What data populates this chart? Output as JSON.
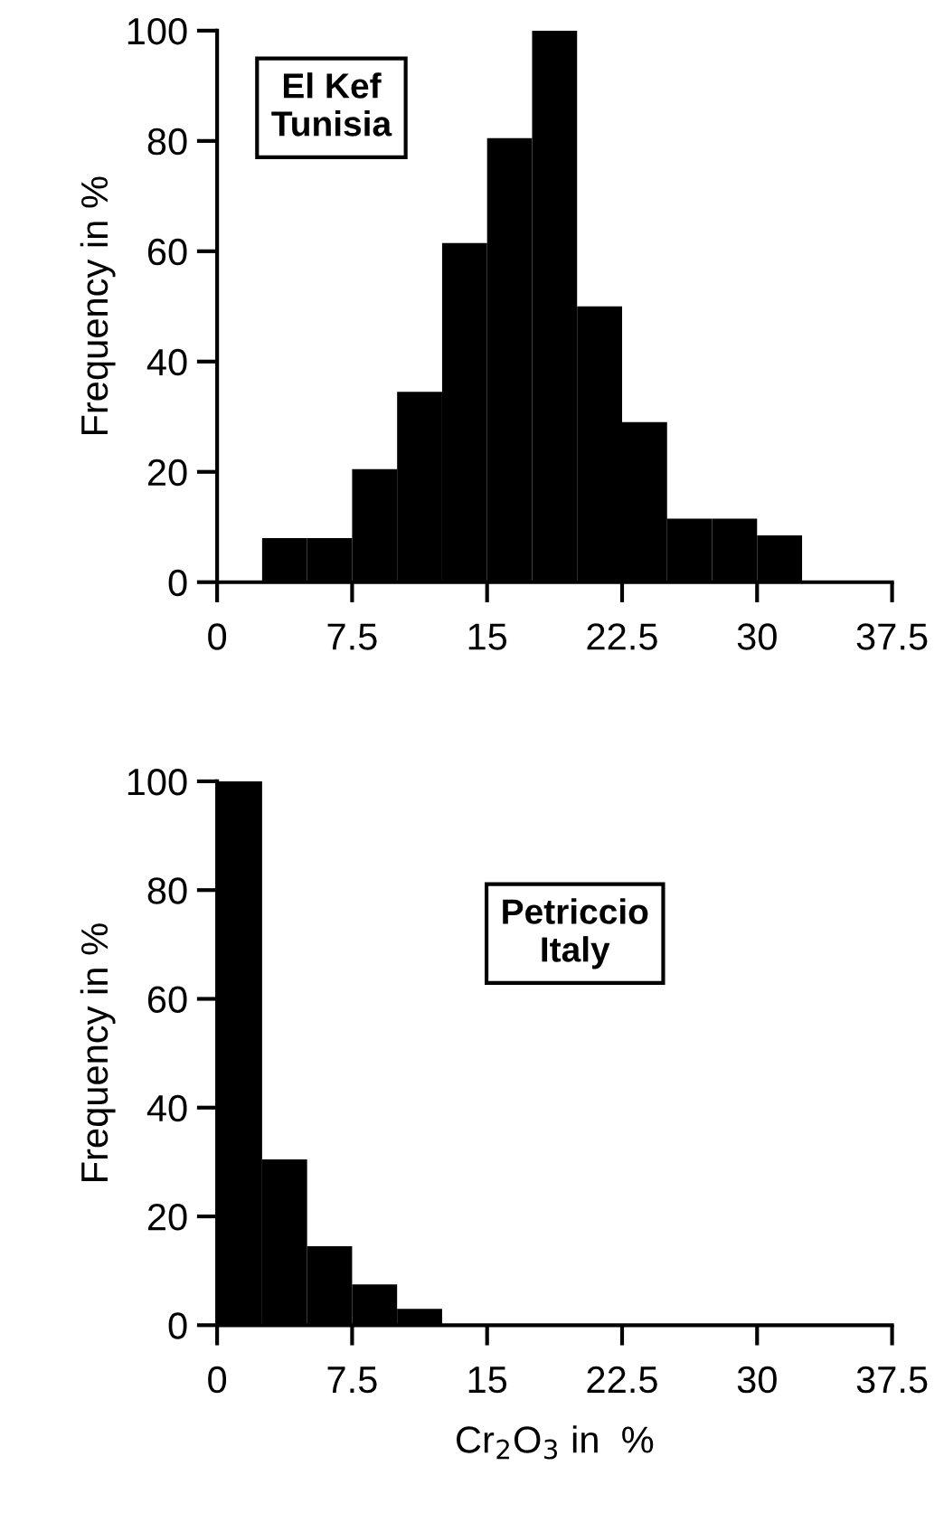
{
  "chart_data": [
    {
      "type": "histogram",
      "ylabel": "Frequency in %",
      "annotations": [
        "El Kef\nTunisia"
      ],
      "bins": [
        0,
        2.5,
        5,
        7.5,
        10,
        12.5,
        15,
        17.5,
        20,
        22.5,
        25,
        27.5,
        30,
        32.5,
        35,
        37.5
      ],
      "values": [
        0,
        8,
        8,
        20.5,
        34.5,
        61.5,
        80.5,
        100,
        50,
        29,
        11.5,
        11.5,
        8.5,
        0,
        0
      ],
      "color": "#000000",
      "xlim": [
        0,
        37.5
      ],
      "xticks": [
        0,
        7.5,
        15,
        22.5,
        30,
        37.5
      ],
      "ylim": [
        0,
        100
      ],
      "yticks": [
        0,
        20,
        40,
        60,
        80,
        100
      ],
      "grid": false
    },
    {
      "type": "histogram",
      "ylabel": "Frequency in %",
      "xlabel": "Cr$_{2}$O$_{3}$ in  %",
      "annotations": [
        "Petriccio\nItaly"
      ],
      "bins": [
        0,
        2.5,
        5,
        7.5,
        10,
        12.5,
        15,
        17.5,
        20,
        22.5,
        25,
        27.5,
        30,
        32.5,
        35,
        37.5
      ],
      "values": [
        100,
        30.5,
        14.5,
        7.5,
        3,
        0,
        0,
        0,
        0,
        0,
        0,
        0,
        0,
        0,
        0
      ],
      "color": "#000000",
      "xlim": [
        0,
        37.5
      ],
      "xticks": [
        0,
        7.5,
        15,
        22.5,
        30,
        37.5
      ],
      "ylim": [
        0,
        100
      ],
      "yticks": [
        0,
        20,
        40,
        60,
        80,
        100
      ],
      "grid": false
    }
  ]
}
